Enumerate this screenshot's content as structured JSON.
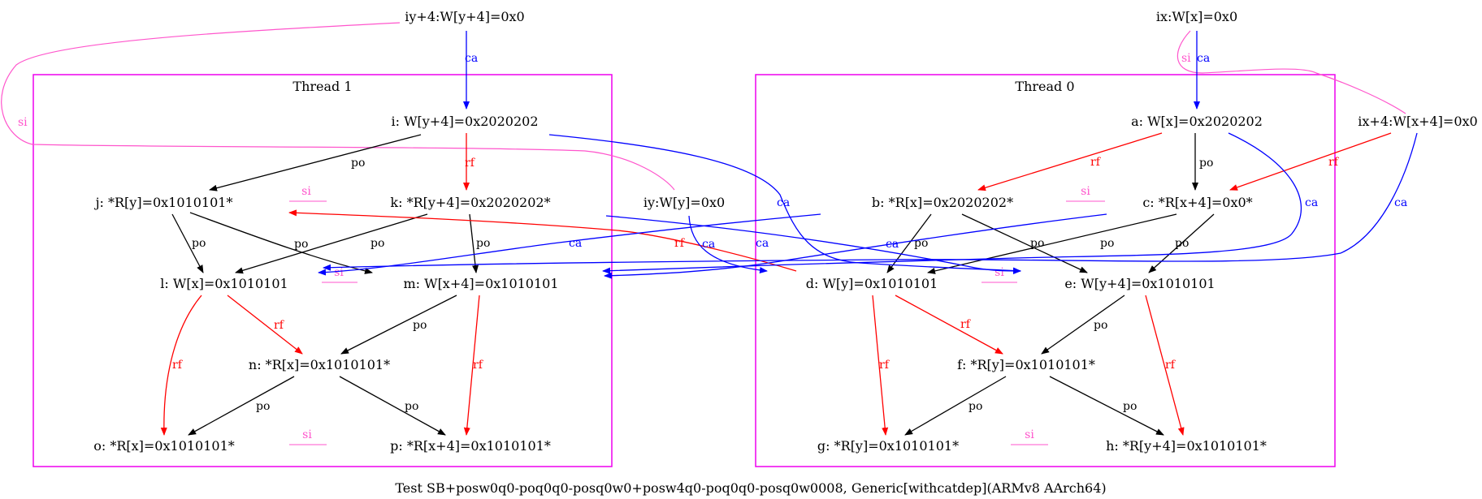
{
  "caption": "Test SB+posw0q0-poq0q0-posq0w0+posw4q0-poq0q0-posq0w0008, Generic[withcatdep](ARMv8 AArch64)",
  "colors": {
    "po": "#000000",
    "rf": "#ff0000",
    "ca": "#0000ff",
    "si": "#ff55cc",
    "cluster": "#ee00ee"
  },
  "clusters": {
    "thread1": "Thread 1",
    "thread0": "Thread 0"
  },
  "init_nodes": {
    "iy4": "iy+4:W[y+4]=0x0",
    "ix": "ix:W[x]=0x0",
    "ix4": "ix+4:W[x+4]=0x0",
    "iy": "iy:W[y]=0x0"
  },
  "thread1_nodes": {
    "i": "i: W[y+4]=0x2020202",
    "j": "j: *R[y]=0x1010101*",
    "k": "k: *R[y+4]=0x2020202*",
    "l": "l: W[x]=0x1010101",
    "m": "m: W[x+4]=0x1010101",
    "n": "n: *R[x]=0x1010101*",
    "o": "o: *R[x]=0x1010101*",
    "p": "p: *R[x+4]=0x1010101*"
  },
  "thread0_nodes": {
    "a": "a: W[x]=0x2020202",
    "b": "b: *R[x]=0x2020202*",
    "c": "c: *R[x+4]=0x0*",
    "d": "d: W[y]=0x1010101",
    "e": "e: W[y+4]=0x1010101",
    "f": "f: *R[y]=0x1010101*",
    "g": "g: *R[y]=0x1010101*",
    "h": "h: *R[y+4]=0x1010101*"
  },
  "edge_labels": {
    "po": "po",
    "rf": "rf",
    "ca": "ca",
    "si": "si"
  }
}
